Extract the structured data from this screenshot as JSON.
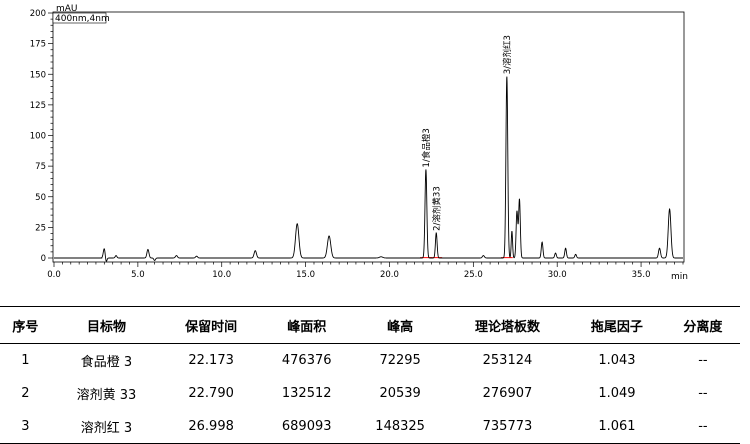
{
  "chart_data": {
    "type": "line",
    "y_unit": "mAU",
    "x_unit": "min",
    "signal_label": "400nm,4nm",
    "xlim": [
      0,
      37.5
    ],
    "ylim": [
      0,
      200
    ],
    "x_ticks": [
      "0.0",
      "5.0",
      "10.0",
      "15.0",
      "20.0",
      "25.0",
      "30.0",
      "35.0"
    ],
    "x_tick_values": [
      0,
      5,
      10,
      15,
      20,
      25,
      30,
      35
    ],
    "y_ticks": [
      "0",
      "25",
      "50",
      "75",
      "100",
      "125",
      "150",
      "175",
      "200"
    ],
    "y_tick_values": [
      0,
      25,
      50,
      75,
      100,
      125,
      150,
      175,
      200
    ],
    "baseline": 0,
    "peaks": [
      {
        "rt": 3.0,
        "height": 8,
        "width": 0.06
      },
      {
        "rt": 3.1,
        "height": -4,
        "width": 0.05
      },
      {
        "rt": 3.7,
        "height": 2,
        "width": 0.05
      },
      {
        "rt": 5.6,
        "height": 7,
        "width": 0.06
      },
      {
        "rt": 6.0,
        "height": -2,
        "width": 0.05
      },
      {
        "rt": 7.3,
        "height": 2,
        "width": 0.06
      },
      {
        "rt": 8.5,
        "height": 1.5,
        "width": 0.06
      },
      {
        "rt": 12.0,
        "height": 6,
        "width": 0.07
      },
      {
        "rt": 14.5,
        "height": 28,
        "width": 0.1
      },
      {
        "rt": 16.4,
        "height": 18,
        "width": 0.1
      },
      {
        "rt": 19.5,
        "height": 1,
        "width": 0.1
      },
      {
        "rt": 22.173,
        "height": 72.295,
        "width": 0.055
      },
      {
        "rt": 22.79,
        "height": 20.539,
        "width": 0.05
      },
      {
        "rt": 25.6,
        "height": 2,
        "width": 0.06
      },
      {
        "rt": 26.998,
        "height": 148.325,
        "width": 0.055
      },
      {
        "rt": 27.3,
        "height": 22,
        "width": 0.04
      },
      {
        "rt": 27.6,
        "height": 38,
        "width": 0.05
      },
      {
        "rt": 27.75,
        "height": 48,
        "width": 0.05
      },
      {
        "rt": 29.1,
        "height": 13,
        "width": 0.05
      },
      {
        "rt": 29.9,
        "height": 4,
        "width": 0.05
      },
      {
        "rt": 30.5,
        "height": 8,
        "width": 0.05
      },
      {
        "rt": 31.1,
        "height": 3,
        "width": 0.05
      },
      {
        "rt": 36.1,
        "height": 8,
        "width": 0.06
      },
      {
        "rt": 36.7,
        "height": 40,
        "width": 0.08
      }
    ],
    "peak_labels": [
      {
        "text": "1/食品橙3",
        "rt": 22.173,
        "height": 72.295
      },
      {
        "text": "2/溶剂黄33",
        "rt": 22.79,
        "height": 20.539
      },
      {
        "text": "3/溶剂红3",
        "rt": 26.998,
        "height": 148.325
      }
    ]
  },
  "table": {
    "headers": [
      "序号",
      "目标物",
      "保留时间",
      "峰面积",
      "峰高",
      "理论塔板数",
      "拖尾因子",
      "分离度"
    ],
    "rows": [
      [
        "1",
        "食品橙 3",
        "22.173",
        "476376",
        "72295",
        "253124",
        "1.043",
        "--"
      ],
      [
        "2",
        "溶剂黄 33",
        "22.790",
        "132512",
        "20539",
        "276907",
        "1.049",
        "--"
      ],
      [
        "3",
        "溶剂红 3",
        "26.998",
        "689093",
        "148325",
        "735773",
        "1.061",
        "--"
      ]
    ]
  },
  "colors": {
    "trace": "#000000",
    "integration_baseline": "#ff0000",
    "axis": "#000000"
  }
}
